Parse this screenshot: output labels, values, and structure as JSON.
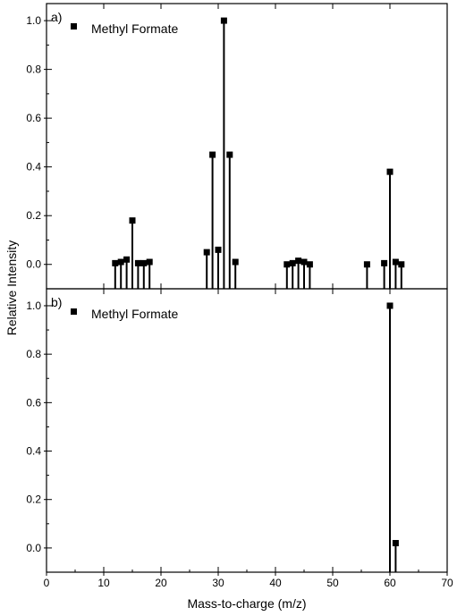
{
  "chart_data": {
    "type": "stem",
    "xlabel": "Mass-to-charge (m/z)",
    "ylabel": "Relative Intensity",
    "xlim": [
      0,
      70
    ],
    "x_ticks": [
      0,
      10,
      20,
      30,
      40,
      50,
      60,
      70
    ],
    "y_ticks": [
      0.0,
      0.2,
      0.4,
      0.6,
      0.8,
      1.0
    ],
    "y_tick_labels": [
      "0.0",
      "0.2",
      "0.4",
      "0.6",
      "0.8",
      "1.0"
    ],
    "panels": [
      {
        "label": "a)",
        "legend": "Methyl Formate",
        "ylim": [
          -0.1,
          1.07
        ],
        "points": [
          {
            "x": 12,
            "y": 0.005
          },
          {
            "x": 13,
            "y": 0.01
          },
          {
            "x": 14,
            "y": 0.02
          },
          {
            "x": 15,
            "y": 0.18
          },
          {
            "x": 16,
            "y": 0.005
          },
          {
            "x": 17,
            "y": 0.005
          },
          {
            "x": 18,
            "y": 0.01
          },
          {
            "x": 28,
            "y": 0.05
          },
          {
            "x": 29,
            "y": 0.45
          },
          {
            "x": 30,
            "y": 0.06
          },
          {
            "x": 31,
            "y": 1.0
          },
          {
            "x": 32,
            "y": 0.45
          },
          {
            "x": 33,
            "y": 0.01
          },
          {
            "x": 42,
            "y": 0.0
          },
          {
            "x": 43,
            "y": 0.005
          },
          {
            "x": 44,
            "y": 0.015
          },
          {
            "x": 45,
            "y": 0.01
          },
          {
            "x": 46,
            "y": 0.0
          },
          {
            "x": 56,
            "y": 0.0
          },
          {
            "x": 59,
            "y": 0.005
          },
          {
            "x": 60,
            "y": 0.38
          },
          {
            "x": 61,
            "y": 0.01
          },
          {
            "x": 62,
            "y": 0.0
          }
        ]
      },
      {
        "label": "b)",
        "legend": "Methyl Formate",
        "ylim": [
          -0.1,
          1.07
        ],
        "points": [
          {
            "x": 60,
            "y": 1.0
          },
          {
            "x": 61,
            "y": 0.02
          }
        ]
      }
    ]
  }
}
